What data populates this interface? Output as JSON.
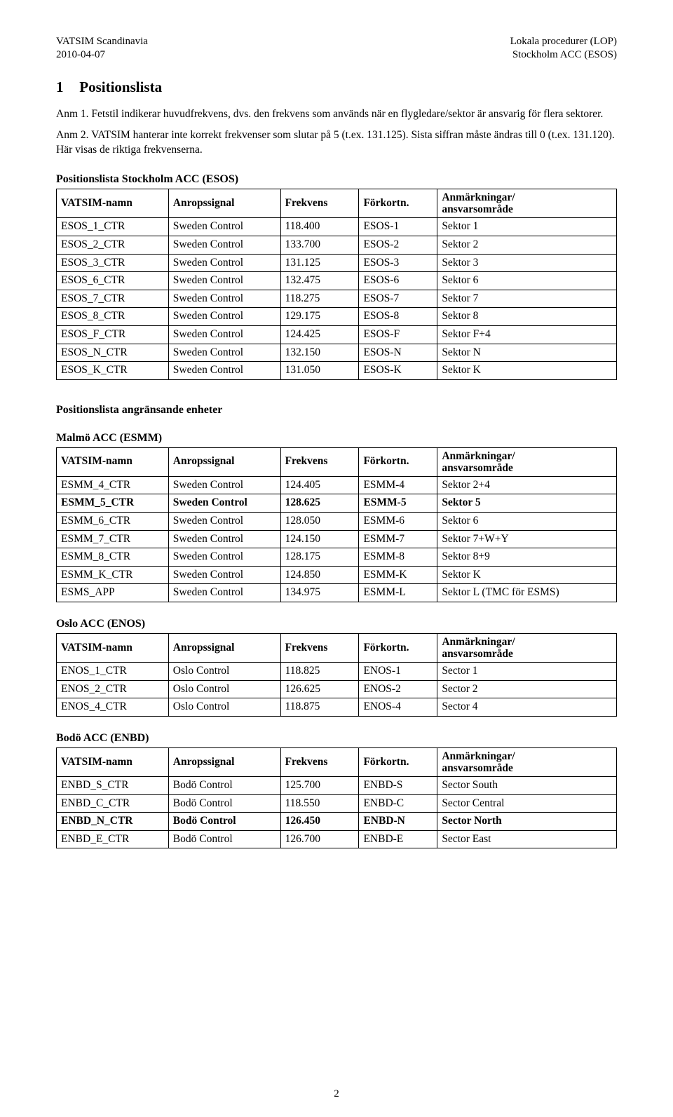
{
  "header": {
    "left1": "VATSIM Scandinavia",
    "left2": "2010-04-07",
    "right1": "Lokala procedurer (LOP)",
    "right2": "Stockholm ACC (ESOS)"
  },
  "section": {
    "number": "1",
    "title": "Positionslista"
  },
  "notes": {
    "p1": "Anm 1. Fetstil indikerar huvudfrekvens, dvs. den frekvens som används när en flygledare/sektor är ansvarig för flera sektorer.",
    "p2": "Anm 2. VATSIM hanterar inte korrekt frekvenser som slutar på 5 (t.ex. 131.125). Sista siffran måste ändras till 0 (t.ex. 131.120). Här visas de riktiga frekvenserna."
  },
  "cols": {
    "name": "VATSIM-namn",
    "call": "Anropssignal",
    "freq": "Frekvens",
    "abbr": "Förkortn.",
    "note_l1": "Anmärkningar/",
    "note_l2": "ansvarsområde"
  },
  "block1": {
    "title": "Positionslista Stockholm ACC (ESOS)",
    "rows": [
      {
        "bold": false,
        "c": [
          "ESOS_1_CTR",
          "Sweden Control",
          "118.400",
          "ESOS-1",
          "Sektor 1"
        ]
      },
      {
        "bold": false,
        "c": [
          "ESOS_2_CTR",
          "Sweden Control",
          "133.700",
          "ESOS-2",
          "Sektor 2"
        ]
      },
      {
        "bold": false,
        "c": [
          "ESOS_3_CTR",
          "Sweden Control",
          "131.125",
          "ESOS-3",
          "Sektor 3"
        ]
      },
      {
        "bold": false,
        "c": [
          "ESOS_6_CTR",
          "Sweden Control",
          "132.475",
          "ESOS-6",
          "Sektor 6"
        ]
      },
      {
        "bold": false,
        "c": [
          "ESOS_7_CTR",
          "Sweden Control",
          "118.275",
          "ESOS-7",
          "Sektor 7"
        ]
      },
      {
        "bold": false,
        "c": [
          "ESOS_8_CTR",
          "Sweden Control",
          "129.175",
          "ESOS-8",
          "Sektor 8"
        ]
      },
      {
        "bold": false,
        "c": [
          "ESOS_F_CTR",
          "Sweden Control",
          "124.425",
          "ESOS-F",
          "Sektor F+4"
        ]
      },
      {
        "bold": false,
        "c": [
          "ESOS_N_CTR",
          "Sweden Control",
          "132.150",
          "ESOS-N",
          "Sektor N"
        ]
      },
      {
        "bold": false,
        "c": [
          "ESOS_K_CTR",
          "Sweden Control",
          "131.050",
          "ESOS-K",
          "Sektor K"
        ]
      }
    ]
  },
  "adjacent_title": "Positionslista angränsande enheter",
  "block2": {
    "title": "Malmö ACC (ESMM)",
    "rows": [
      {
        "bold": false,
        "c": [
          "ESMM_4_CTR",
          "Sweden Control",
          "124.405",
          "ESMM-4",
          "Sektor 2+4"
        ]
      },
      {
        "bold": true,
        "c": [
          "ESMM_5_CTR",
          "Sweden Control",
          "128.625",
          "ESMM-5",
          "Sektor 5"
        ]
      },
      {
        "bold": false,
        "c": [
          "ESMM_6_CTR",
          "Sweden Control",
          "128.050",
          "ESMM-6",
          "Sektor 6"
        ]
      },
      {
        "bold": false,
        "c": [
          "ESMM_7_CTR",
          "Sweden Control",
          "124.150",
          "ESMM-7",
          "Sektor 7+W+Y"
        ]
      },
      {
        "bold": false,
        "c": [
          "ESMM_8_CTR",
          "Sweden Control",
          "128.175",
          "ESMM-8",
          "Sektor 8+9"
        ]
      },
      {
        "bold": false,
        "c": [
          "ESMM_K_CTR",
          "Sweden Control",
          "124.850",
          "ESMM-K",
          "Sektor K"
        ]
      },
      {
        "bold": false,
        "c": [
          "ESMS_APP",
          "Sweden Control",
          "134.975",
          "ESMM-L",
          "Sektor L (TMC för ESMS)"
        ]
      }
    ]
  },
  "block3": {
    "title": "Oslo ACC (ENOS)",
    "rows": [
      {
        "bold": false,
        "c": [
          "ENOS_1_CTR",
          "Oslo Control",
          "118.825",
          "ENOS-1",
          "Sector 1"
        ]
      },
      {
        "bold": false,
        "c": [
          "ENOS_2_CTR",
          "Oslo Control",
          "126.625",
          "ENOS-2",
          "Sector 2"
        ]
      },
      {
        "bold": false,
        "c": [
          "ENOS_4_CTR",
          "Oslo Control",
          "118.875",
          "ENOS-4",
          "Sector 4"
        ]
      }
    ]
  },
  "block4": {
    "title": "Bodö ACC (ENBD)",
    "rows": [
      {
        "bold": false,
        "c": [
          "ENBD_S_CTR",
          "Bodö Control",
          "125.700",
          "ENBD-S",
          "Sector South"
        ]
      },
      {
        "bold": false,
        "c": [
          "ENBD_C_CTR",
          "Bodö Control",
          "118.550",
          "ENBD-C",
          "Sector Central"
        ]
      },
      {
        "bold": true,
        "c": [
          "ENBD_N_CTR",
          "Bodö Control",
          "126.450",
          "ENBD-N",
          "Sector North"
        ]
      },
      {
        "bold": false,
        "c": [
          "ENBD_E_CTR",
          "Bodö Control",
          "126.700",
          "ENBD-E",
          "Sector East"
        ]
      }
    ]
  },
  "page_number": "2"
}
